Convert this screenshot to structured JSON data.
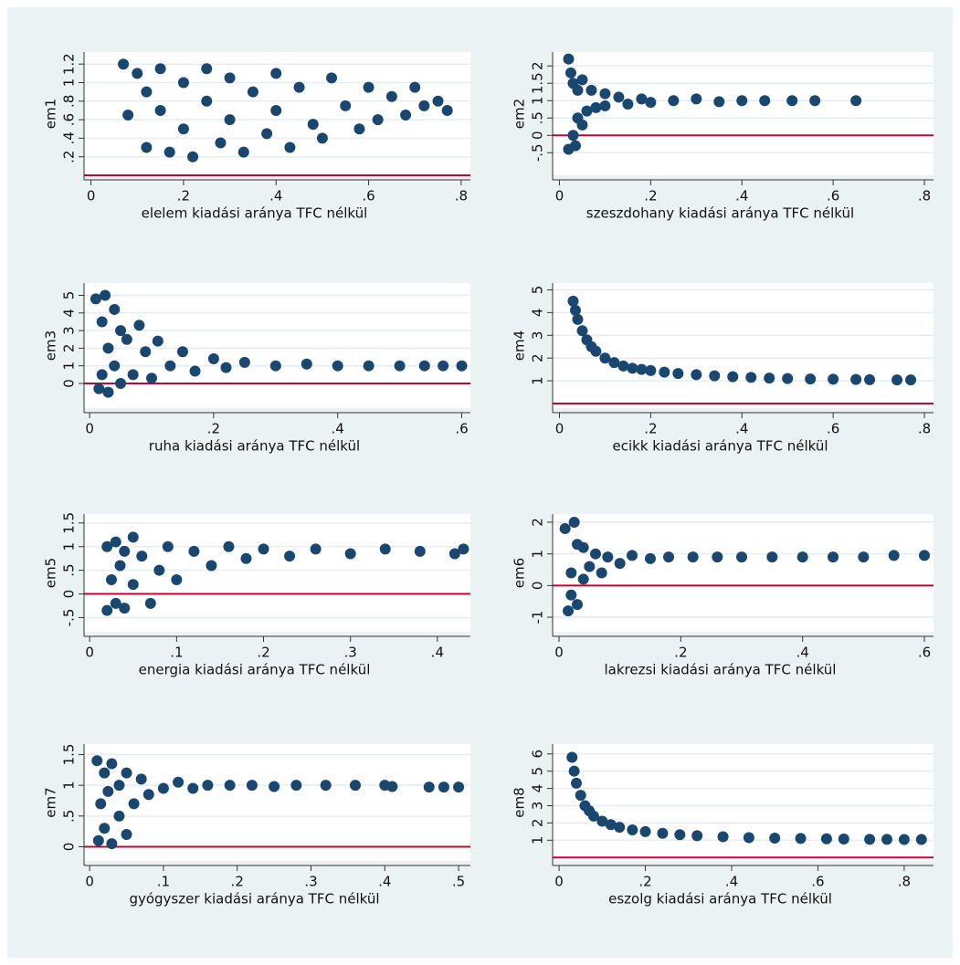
{
  "chart_data": [
    {
      "type": "scatter",
      "y_label": "em1",
      "x_label": "elelem kiadási aránya TFC nélkül",
      "color": "#1a476f",
      "refline": 0,
      "refline_color": "#c10534",
      "grid": true,
      "xlim": [
        -0.015,
        0.82
      ],
      "ylim": [
        0,
        1.33
      ],
      "xticks": [
        0,
        {
          "value": 0.2,
          "label": ".2"
        },
        {
          "value": 0.4,
          "label": ".4"
        },
        {
          "value": 0.6,
          "label": ".6"
        },
        {
          "value": 0.8,
          "label": ".8"
        }
      ],
      "yticks": [
        {
          "value": 0.2,
          "label": ".2"
        },
        {
          "value": 0.4,
          "label": ".4"
        },
        {
          "value": 0.6,
          "label": ".6"
        },
        {
          "value": 0.8,
          "label": ".8"
        },
        1,
        1.2
      ],
      "x": [
        0.07,
        0.08,
        0.1,
        0.12,
        0.12,
        0.15,
        0.15,
        0.17,
        0.2,
        0.2,
        0.22,
        0.25,
        0.25,
        0.28,
        0.3,
        0.3,
        0.33,
        0.35,
        0.38,
        0.4,
        0.4,
        0.43,
        0.45,
        0.48,
        0.5,
        0.52,
        0.55,
        0.58,
        0.6,
        0.62,
        0.65,
        0.68,
        0.7,
        0.72,
        0.75,
        0.77
      ],
      "y": [
        1.2,
        0.65,
        1.1,
        0.9,
        0.3,
        0.7,
        1.15,
        0.25,
        0.5,
        1.0,
        0.2,
        0.8,
        1.15,
        0.35,
        0.6,
        1.05,
        0.25,
        0.9,
        0.45,
        1.1,
        0.7,
        0.3,
        0.95,
        0.55,
        0.4,
        1.05,
        0.75,
        0.5,
        0.95,
        0.6,
        0.85,
        0.65,
        0.95,
        0.75,
        0.8,
        0.7
      ]
    },
    {
      "type": "scatter",
      "y_label": "em2",
      "x_label": "szeszdohany kiadási aránya TFC nélkül",
      "color": "#1a476f",
      "refline": 0,
      "refline_color": "#c10534",
      "grid": true,
      "xlim": [
        -0.015,
        0.82
      ],
      "ylim": [
        -1.15,
        2.4
      ],
      "xticks": [
        0,
        {
          "value": 0.2,
          "label": ".2"
        },
        {
          "value": 0.4,
          "label": ".4"
        },
        {
          "value": 0.6,
          "label": ".6"
        },
        {
          "value": 0.8,
          "label": ".8"
        }
      ],
      "yticks": [
        {
          "value": -0.5,
          "label": "-.5"
        },
        0,
        {
          "value": 0.5,
          "label": ".5"
        },
        1,
        1.5,
        2
      ],
      "x": [
        0.02,
        0.02,
        0.025,
        0.03,
        0.03,
        0.035,
        0.04,
        0.04,
        0.05,
        0.05,
        0.06,
        0.07,
        0.08,
        0.1,
        0.1,
        0.13,
        0.15,
        0.18,
        0.2,
        0.25,
        0.3,
        0.35,
        0.4,
        0.45,
        0.51,
        0.56,
        0.65
      ],
      "y": [
        2.2,
        -0.4,
        1.8,
        0,
        1.5,
        -0.3,
        0.5,
        1.3,
        0.3,
        1.6,
        0.7,
        1.3,
        0.8,
        1.2,
        0.85,
        1.1,
        0.9,
        1.05,
        0.95,
        1,
        1.05,
        0.97,
        1,
        1,
        1,
        1,
        1
      ]
    },
    {
      "type": "scatter",
      "y_label": "em3",
      "x_label": "ruha kiadási aránya TFC nélkül",
      "color": "#1a476f",
      "refline": 0,
      "refline_color": "#c10534",
      "grid": true,
      "xlim": [
        -0.009,
        0.614
      ],
      "ylim": [
        -1.4,
        5.7
      ],
      "xticks": [
        0,
        {
          "value": 0.2,
          "label": ".2"
        },
        {
          "value": 0.4,
          "label": ".4"
        },
        {
          "value": 0.6,
          "label": ".6"
        }
      ],
      "yticks": [
        0,
        1,
        2,
        3,
        4,
        5
      ],
      "x": [
        0.01,
        0.015,
        0.02,
        0.02,
        0.025,
        0.03,
        0.03,
        0.04,
        0.04,
        0.05,
        0.05,
        0.06,
        0.07,
        0.08,
        0.09,
        0.1,
        0.11,
        0.13,
        0.15,
        0.17,
        0.2,
        0.22,
        0.25,
        0.3,
        0.35,
        0.4,
        0.45,
        0.5,
        0.54,
        0.57,
        0.6
      ],
      "y": [
        4.8,
        -0.3,
        3.5,
        0.5,
        5.0,
        2.0,
        -0.5,
        4.2,
        1.0,
        3.0,
        0,
        2.5,
        0.5,
        3.3,
        1.8,
        0.3,
        2.4,
        1.0,
        1.8,
        0.7,
        1.4,
        0.9,
        1.2,
        1.0,
        1.1,
        1.0,
        1.0,
        1.0,
        1.0,
        1.0,
        1.0
      ]
    },
    {
      "type": "scatter",
      "y_label": "em4",
      "x_label": "ecikk kiadási aránya TFC nélkül",
      "color": "#1a476f",
      "refline": 0,
      "refline_color": "#c10534",
      "grid": true,
      "xlim": [
        -0.015,
        0.82
      ],
      "ylim": [
        -0.2,
        5.3
      ],
      "xticks": [
        0,
        {
          "value": 0.2,
          "label": ".2"
        },
        {
          "value": 0.4,
          "label": ".4"
        },
        {
          "value": 0.6,
          "label": ".6"
        },
        {
          "value": 0.8,
          "label": ".8"
        }
      ],
      "yticks": [
        1,
        2,
        3,
        4,
        5
      ],
      "x": [
        0.03,
        0.035,
        0.04,
        0.05,
        0.06,
        0.07,
        0.08,
        0.1,
        0.12,
        0.14,
        0.16,
        0.18,
        0.2,
        0.23,
        0.26,
        0.3,
        0.34,
        0.38,
        0.42,
        0.46,
        0.5,
        0.55,
        0.6,
        0.65,
        0.68,
        0.74,
        0.77
      ],
      "y": [
        4.5,
        4.1,
        3.7,
        3.2,
        2.8,
        2.5,
        2.3,
        2.0,
        1.8,
        1.65,
        1.55,
        1.5,
        1.45,
        1.38,
        1.32,
        1.27,
        1.22,
        1.18,
        1.15,
        1.12,
        1.1,
        1.08,
        1.07,
        1.06,
        1.05,
        1.04,
        1.04
      ]
    },
    {
      "type": "scatter",
      "y_label": "em5",
      "x_label": "energia kiadási aránya TFC nélkül",
      "color": "#1a476f",
      "refline": 0,
      "refline_color": "#c10534",
      "grid": true,
      "xlim": [
        -0.0065,
        0.438
      ],
      "ylim": [
        -0.8,
        1.69
      ],
      "xticks": [
        0,
        {
          "value": 0.1,
          "label": ".1"
        },
        {
          "value": 0.2,
          "label": ".2"
        },
        {
          "value": 0.3,
          "label": ".3"
        },
        {
          "value": 0.4,
          "label": ".4"
        }
      ],
      "yticks": [
        {
          "value": -0.5,
          "label": "-.5"
        },
        0,
        {
          "value": 0.5,
          "label": ".5"
        },
        1,
        1.5
      ],
      "x": [
        0.02,
        0.02,
        0.025,
        0.03,
        0.03,
        0.035,
        0.04,
        0.04,
        0.05,
        0.05,
        0.06,
        0.07,
        0.08,
        0.09,
        0.1,
        0.12,
        0.14,
        0.16,
        0.18,
        0.2,
        0.23,
        0.26,
        0.3,
        0.34,
        0.38,
        0.42,
        0.43
      ],
      "y": [
        -0.35,
        1.0,
        0.3,
        1.1,
        -0.2,
        0.6,
        0.9,
        -0.3,
        0.2,
        1.2,
        0.8,
        -0.2,
        0.5,
        1.0,
        0.3,
        0.9,
        0.6,
        1.0,
        0.75,
        0.95,
        0.8,
        0.95,
        0.85,
        0.95,
        0.9,
        0.85,
        0.95
      ]
    },
    {
      "type": "scatter",
      "y_label": "em6",
      "x_label": "lakrezsi kiadási aránya TFC nélkül",
      "color": "#1a476f",
      "refline": 0,
      "refline_color": "#c10534",
      "grid": true,
      "xlim": [
        -0.0105,
        0.615
      ],
      "ylim": [
        -1.46,
        2.26
      ],
      "xticks": [
        0,
        {
          "value": 0.2,
          "label": ".2"
        },
        {
          "value": 0.4,
          "label": ".4"
        },
        {
          "value": 0.6,
          "label": ".6"
        }
      ],
      "yticks": [
        -1,
        0,
        1,
        2
      ],
      "x": [
        0.01,
        0.015,
        0.02,
        0.02,
        0.025,
        0.03,
        0.03,
        0.04,
        0.04,
        0.05,
        0.06,
        0.07,
        0.08,
        0.1,
        0.12,
        0.15,
        0.18,
        0.22,
        0.26,
        0.3,
        0.35,
        0.4,
        0.45,
        0.5,
        0.55,
        0.6
      ],
      "y": [
        1.8,
        -0.8,
        0.4,
        -0.3,
        2.0,
        1.3,
        -0.6,
        0.2,
        1.2,
        0.6,
        1.0,
        0.4,
        0.9,
        0.7,
        0.95,
        0.85,
        0.9,
        0.9,
        0.9,
        0.9,
        0.9,
        0.9,
        0.9,
        0.9,
        0.95,
        0.95
      ]
    },
    {
      "type": "scatter",
      "y_label": "em7",
      "x_label": "gyógyszer kiadási aránya TFC nélkül",
      "color": "#1a476f",
      "refline": 0,
      "refline_color": "#c10534",
      "grid": true,
      "xlim": [
        -0.0076,
        0.516
      ],
      "ylim": [
        -0.23,
        1.67
      ],
      "xticks": [
        0,
        {
          "value": 0.1,
          "label": ".1"
        },
        {
          "value": 0.2,
          "label": ".2"
        },
        {
          "value": 0.3,
          "label": ".3"
        },
        {
          "value": 0.4,
          "label": ".4"
        },
        {
          "value": 0.5,
          "label": ".5"
        }
      ],
      "yticks": [
        0,
        {
          "value": 0.5,
          "label": ".5"
        },
        1,
        1.5
      ],
      "x": [
        0.01,
        0.012,
        0.015,
        0.02,
        0.02,
        0.025,
        0.03,
        0.03,
        0.04,
        0.04,
        0.05,
        0.05,
        0.06,
        0.07,
        0.08,
        0.1,
        0.12,
        0.14,
        0.16,
        0.19,
        0.22,
        0.25,
        0.28,
        0.32,
        0.36,
        0.4,
        0.41,
        0.46,
        0.48,
        0.5
      ],
      "y": [
        1.4,
        0.1,
        0.7,
        1.2,
        0.3,
        0.9,
        0.05,
        1.35,
        0.5,
        1.0,
        0.2,
        1.2,
        0.7,
        1.1,
        0.85,
        0.95,
        1.05,
        0.95,
        1.0,
        1.0,
        1.0,
        0.98,
        1.0,
        1.0,
        1.0,
        1.0,
        0.98,
        0.97,
        0.97,
        0.97
      ]
    },
    {
      "type": "scatter",
      "y_label": "em8",
      "x_label": "eszolg kiadási aránya TFC nélkül",
      "color": "#1a476f",
      "refline": 0,
      "refline_color": "#c10534",
      "grid": true,
      "xlim": [
        -0.015,
        0.868
      ],
      "ylim": [
        -0.2,
        6.57
      ],
      "xticks": [
        0,
        {
          "value": 0.2,
          "label": ".2"
        },
        {
          "value": 0.4,
          "label": ".4"
        },
        {
          "value": 0.6,
          "label": ".6"
        },
        {
          "value": 0.8,
          "label": ".8"
        }
      ],
      "yticks": [
        1,
        2,
        3,
        4,
        5,
        6
      ],
      "x": [
        0.03,
        0.035,
        0.04,
        0.05,
        0.06,
        0.07,
        0.08,
        0.1,
        0.12,
        0.14,
        0.17,
        0.2,
        0.24,
        0.28,
        0.32,
        0.38,
        0.44,
        0.5,
        0.56,
        0.62,
        0.66,
        0.72,
        0.76,
        0.8,
        0.84
      ],
      "y": [
        5.8,
        5.0,
        4.3,
        3.6,
        3.0,
        2.7,
        2.4,
        2.1,
        1.9,
        1.75,
        1.6,
        1.5,
        1.4,
        1.32,
        1.26,
        1.2,
        1.15,
        1.12,
        1.1,
        1.08,
        1.07,
        1.05,
        1.05,
        1.04,
        1.04
      ]
    }
  ]
}
